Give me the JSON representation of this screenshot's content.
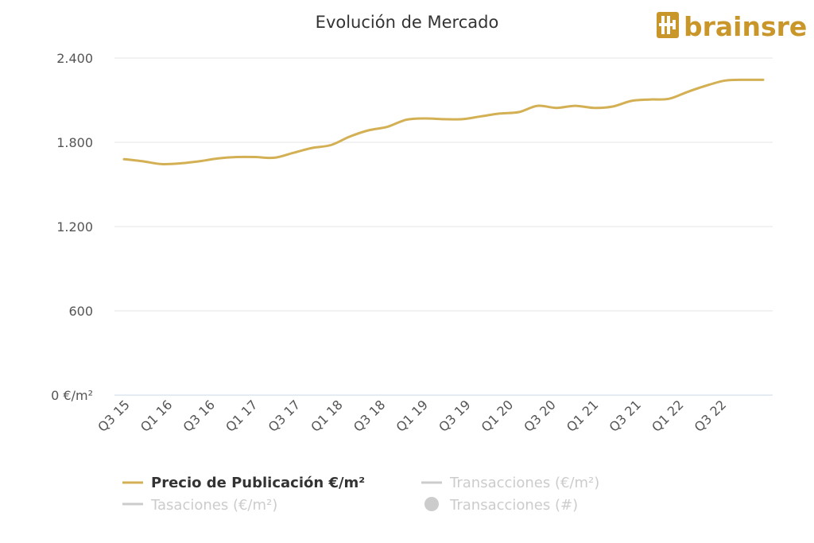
{
  "chart_data": {
    "type": "line",
    "title": "Evolución de Mercado",
    "ylim": [
      0,
      2400
    ],
    "yticks": [
      {
        "value": 0,
        "label": "0 €/m²"
      },
      {
        "value": 600,
        "label": "600"
      },
      {
        "value": 1200,
        "label": "1.200"
      },
      {
        "value": 1800,
        "label": "1.800"
      },
      {
        "value": 2400,
        "label": "2.400"
      }
    ],
    "x_labels": [
      "Q3 15",
      "Q1 16",
      "Q3 16",
      "Q1 17",
      "Q3 17",
      "Q1 18",
      "Q3 18",
      "Q1 19",
      "Q3 19",
      "Q1 20",
      "Q3 20",
      "Q1 21",
      "Q3 21",
      "Q1 22",
      "Q3 22"
    ],
    "grid": true,
    "legend_position": "bottom",
    "series": [
      {
        "name": "Precio de Publicación €/m²",
        "color": "#d4b054",
        "visible": true,
        "values": [
          1680,
          1665,
          1645,
          1650,
          1665,
          1685,
          1695,
          1695,
          1690,
          1725,
          1760,
          1780,
          1840,
          1885,
          1910,
          1960,
          1970,
          1965,
          1965,
          1985,
          2005,
          2015,
          2060,
          2045,
          2060,
          2045,
          2055,
          2095,
          2105,
          2110,
          2160,
          2205,
          2240,
          2245,
          2245
        ]
      },
      {
        "name": "Transacciones (€/m²)",
        "color": "#cccccc",
        "visible": false,
        "values": []
      },
      {
        "name": "Tasaciones (€/m²)",
        "color": "#cccccc",
        "visible": false,
        "values": []
      },
      {
        "name": "Transacciones (#)",
        "color": "#cccccc",
        "visible": false,
        "values": []
      }
    ]
  },
  "brand": {
    "name": "brainsre",
    "color": "#c9962a"
  }
}
